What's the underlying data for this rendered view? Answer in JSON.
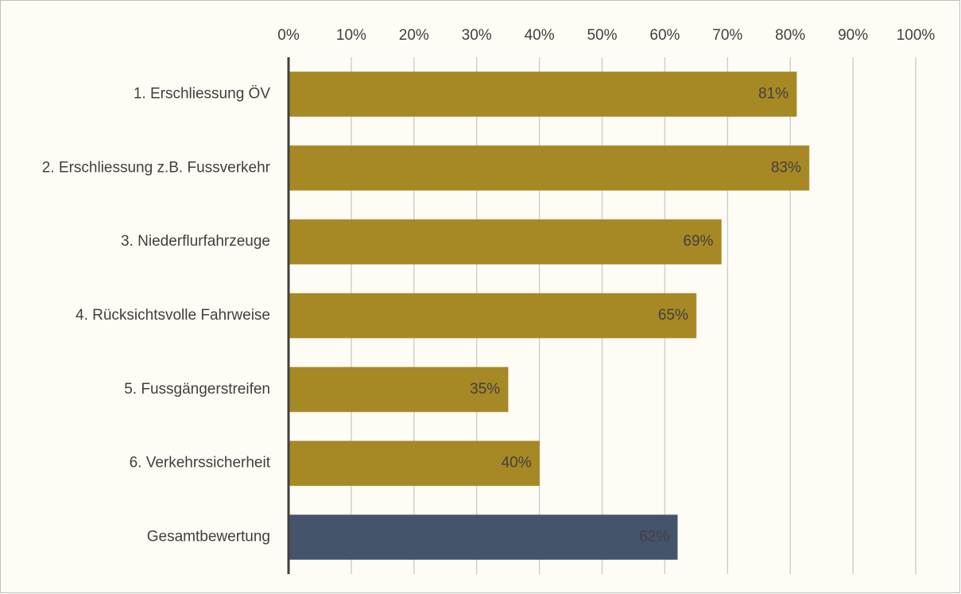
{
  "chart_data": {
    "type": "barh",
    "categories": [
      "1. Erschliessung ÖV",
      "2. Erschliessung z.B. Fussverkehr",
      "3. Niederflurfahrzeuge",
      "4. Rücksichtsvolle Fahrweise",
      "5. Fussgängerstreifen",
      "6. Verkehrssicherheit",
      "Gesamtbewertung"
    ],
    "values": [
      81,
      83,
      69,
      65,
      35,
      40,
      62
    ],
    "value_labels": [
      "81%",
      "83%",
      "69%",
      "65%",
      "35%",
      "40%",
      "62%"
    ],
    "colors": [
      "#a68825",
      "#a68825",
      "#a68825",
      "#a68825",
      "#a68825",
      "#a68825",
      "#44546a"
    ],
    "xlim": [
      0,
      100
    ],
    "xticks": [
      {
        "value": 0,
        "label": "0%"
      },
      {
        "value": 10,
        "label": "10%"
      },
      {
        "value": 20,
        "label": "20%"
      },
      {
        "value": 30,
        "label": "30%"
      },
      {
        "value": 40,
        "label": "40%"
      },
      {
        "value": 50,
        "label": "50%"
      },
      {
        "value": 60,
        "label": "60%"
      },
      {
        "value": 70,
        "label": "70%"
      },
      {
        "value": 80,
        "label": "80%"
      },
      {
        "value": 90,
        "label": "90%"
      },
      {
        "value": 100,
        "label": "100%"
      }
    ],
    "grid": true
  }
}
